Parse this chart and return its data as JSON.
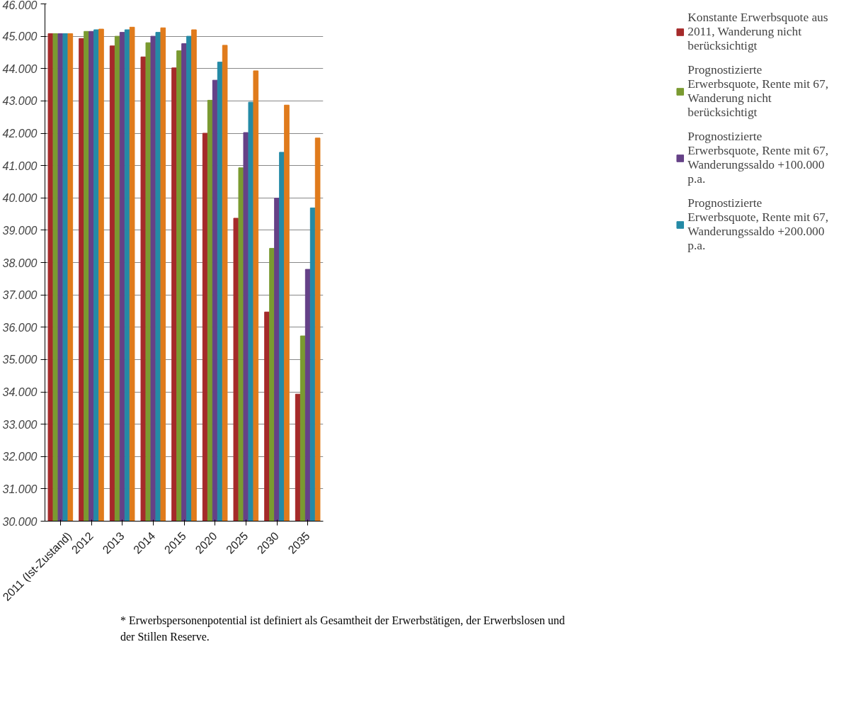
{
  "chart_data": {
    "type": "bar",
    "categories": [
      "2011 (Ist-Zustand)",
      "2012",
      "2013",
      "2014",
      "2015",
      "2020",
      "2025",
      "2030",
      "2035"
    ],
    "series": [
      {
        "name": "Konstante Erwerbsquote aus 2011, Wanderung nicht berücksichtigt",
        "color": "#a52a2a",
        "values": [
          45080,
          44930,
          44700,
          44360,
          44020,
          42000,
          39370,
          36470,
          33930
        ]
      },
      {
        "name": "Prognostizierte Erwerbsquote, Rente mit 67, Wanderung nicht berücksichtigt",
        "color": "#7a9a30",
        "values": [
          45080,
          45150,
          45000,
          44800,
          44550,
          43020,
          40930,
          38440,
          35730
        ]
      },
      {
        "name": "Prognostizierte Erwerbsquote, Rente mit 67, Wanderungssaldo +100.000 p.a.",
        "color": "#654187",
        "values": [
          45080,
          45150,
          45120,
          45000,
          44770,
          43640,
          42020,
          39990,
          37790
        ]
      },
      {
        "name": "Prognostizierte Erwerbsquote, Rente mit 67, Wanderungssaldo +200.000 p.a.",
        "color": "#248aa6",
        "values": [
          45080,
          45200,
          45200,
          45120,
          45000,
          44200,
          42960,
          41410,
          39690
        ]
      },
      {
        "color": "#e07b1c",
        "values": [
          45080,
          45220,
          45280,
          45260,
          45200,
          44720,
          43930,
          42870,
          41850
        ]
      }
    ],
    "ylim": [
      30000,
      46000
    ],
    "yticks": [
      {
        "value": 30000,
        "label": "30.000"
      },
      {
        "value": 31000,
        "label": "31.000"
      },
      {
        "value": 32000,
        "label": "32.000"
      },
      {
        "value": 33000,
        "label": "33.000"
      },
      {
        "value": 34000,
        "label": "34.000"
      },
      {
        "value": 35000,
        "label": "35.000"
      },
      {
        "value": 36000,
        "label": "36.000"
      },
      {
        "value": 37000,
        "label": "37.000"
      },
      {
        "value": 38000,
        "label": "38.000"
      },
      {
        "value": 39000,
        "label": "39.000"
      },
      {
        "value": 40000,
        "label": "40.000"
      },
      {
        "value": 41000,
        "label": "41.000"
      },
      {
        "value": 42000,
        "label": "42.000"
      },
      {
        "value": 43000,
        "label": "43.000"
      },
      {
        "value": 44000,
        "label": "44.000"
      },
      {
        "value": 45000,
        "label": "45.000"
      },
      {
        "value": 46000,
        "label": "46.000"
      }
    ],
    "grid": "y",
    "legend": "right",
    "annotations": [
      "* Erwerbspersonenpotential ist definiert als Gesamtheit der Erwerbstätigen, der Erwerbslosen und der Stillen Reserve."
    ]
  }
}
